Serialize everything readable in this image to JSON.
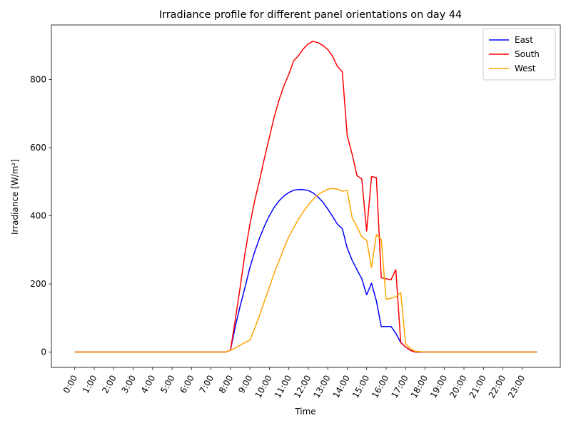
{
  "chart_data": {
    "type": "line",
    "title": "Irradiance profile for different panel orientations on day 44",
    "xlabel": "Time",
    "ylabel": "Irradiance [W/m²]",
    "x_ticks": [
      "0:00",
      "1:00",
      "2:00",
      "3:00",
      "4:00",
      "5:00",
      "6:00",
      "7:00",
      "8:00",
      "9:00",
      "10:00",
      "11:00",
      "12:00",
      "13:00",
      "14:00",
      "15:00",
      "16:00",
      "17:00",
      "18:00",
      "19:00",
      "20:00",
      "21:00",
      "22:00",
      "23:00"
    ],
    "y_ticks": [
      0,
      200,
      400,
      600,
      800
    ],
    "xlim": [
      -1.2,
      24.95
    ],
    "ylim": [
      -45,
      960
    ],
    "legend_position": "top-right",
    "grid": false,
    "series": [
      {
        "name": "East",
        "color": "#0000ff",
        "points": [
          [
            0,
            0
          ],
          [
            1,
            0
          ],
          [
            2,
            0
          ],
          [
            3,
            0
          ],
          [
            4,
            0
          ],
          [
            5,
            0
          ],
          [
            6,
            0
          ],
          [
            7,
            0
          ],
          [
            7.75,
            0
          ],
          [
            8.0,
            5
          ],
          [
            8.25,
            75
          ],
          [
            8.5,
            135
          ],
          [
            8.75,
            190
          ],
          [
            9.0,
            248
          ],
          [
            9.25,
            295
          ],
          [
            9.5,
            335
          ],
          [
            9.75,
            370
          ],
          [
            10.0,
            400
          ],
          [
            10.25,
            425
          ],
          [
            10.5,
            444
          ],
          [
            10.75,
            458
          ],
          [
            11.0,
            468
          ],
          [
            11.25,
            475
          ],
          [
            11.5,
            477
          ],
          [
            11.75,
            477
          ],
          [
            12.0,
            474
          ],
          [
            12.25,
            467
          ],
          [
            12.5,
            455
          ],
          [
            12.75,
            440
          ],
          [
            13.0,
            420
          ],
          [
            13.25,
            398
          ],
          [
            13.5,
            375
          ],
          [
            13.75,
            362
          ],
          [
            14.0,
            305
          ],
          [
            14.25,
            270
          ],
          [
            14.5,
            242
          ],
          [
            14.75,
            215
          ],
          [
            15.0,
            168
          ],
          [
            15.25,
            202
          ],
          [
            15.5,
            150
          ],
          [
            15.75,
            75
          ],
          [
            16.0,
            75
          ],
          [
            16.25,
            75
          ],
          [
            16.5,
            55
          ],
          [
            16.75,
            28
          ],
          [
            17.0,
            15
          ],
          [
            17.25,
            5
          ],
          [
            17.5,
            0
          ],
          [
            18,
            0
          ],
          [
            19,
            0
          ],
          [
            20,
            0
          ],
          [
            21,
            0
          ],
          [
            22,
            0
          ],
          [
            23,
            0
          ],
          [
            23.75,
            0
          ]
        ]
      },
      {
        "name": "South",
        "color": "#ff0000",
        "points": [
          [
            0,
            0
          ],
          [
            1,
            0
          ],
          [
            2,
            0
          ],
          [
            3,
            0
          ],
          [
            4,
            0
          ],
          [
            5,
            0
          ],
          [
            6,
            0
          ],
          [
            7,
            0
          ],
          [
            7.75,
            0
          ],
          [
            8.0,
            5
          ],
          [
            8.25,
            95
          ],
          [
            8.5,
            190
          ],
          [
            8.75,
            290
          ],
          [
            9.0,
            375
          ],
          [
            9.25,
            445
          ],
          [
            9.5,
            505
          ],
          [
            9.75,
            570
          ],
          [
            10.0,
            630
          ],
          [
            10.25,
            690
          ],
          [
            10.5,
            740
          ],
          [
            10.75,
            782
          ],
          [
            11.0,
            815
          ],
          [
            11.25,
            855
          ],
          [
            11.5,
            870
          ],
          [
            11.75,
            890
          ],
          [
            12.0,
            905
          ],
          [
            12.25,
            912
          ],
          [
            12.5,
            908
          ],
          [
            12.75,
            900
          ],
          [
            13.0,
            888
          ],
          [
            13.25,
            868
          ],
          [
            13.5,
            838
          ],
          [
            13.75,
            822
          ],
          [
            14.0,
            635
          ],
          [
            14.25,
            582
          ],
          [
            14.5,
            518
          ],
          [
            14.75,
            508
          ],
          [
            15.0,
            355
          ],
          [
            15.25,
            515
          ],
          [
            15.5,
            512
          ],
          [
            15.75,
            218
          ],
          [
            16.0,
            215
          ],
          [
            16.25,
            212
          ],
          [
            16.5,
            242
          ],
          [
            16.75,
            28
          ],
          [
            17.0,
            15
          ],
          [
            17.25,
            5
          ],
          [
            17.5,
            0
          ],
          [
            18,
            0
          ],
          [
            19,
            0
          ],
          [
            20,
            0
          ],
          [
            21,
            0
          ],
          [
            22,
            0
          ],
          [
            23,
            0
          ],
          [
            23.75,
            0
          ]
        ]
      },
      {
        "name": "West",
        "color": "#ffa500",
        "points": [
          [
            0,
            0
          ],
          [
            1,
            0
          ],
          [
            2,
            0
          ],
          [
            3,
            0
          ],
          [
            4,
            0
          ],
          [
            5,
            0
          ],
          [
            6,
            0
          ],
          [
            7,
            0
          ],
          [
            7.75,
            0
          ],
          [
            8.0,
            5
          ],
          [
            8.25,
            12
          ],
          [
            8.5,
            20
          ],
          [
            8.75,
            28
          ],
          [
            9.0,
            35
          ],
          [
            9.25,
            70
          ],
          [
            9.5,
            108
          ],
          [
            9.75,
            150
          ],
          [
            10.0,
            190
          ],
          [
            10.25,
            232
          ],
          [
            10.5,
            268
          ],
          [
            10.75,
            305
          ],
          [
            11.0,
            338
          ],
          [
            11.25,
            365
          ],
          [
            11.5,
            390
          ],
          [
            11.75,
            412
          ],
          [
            12.0,
            432
          ],
          [
            12.25,
            448
          ],
          [
            12.5,
            462
          ],
          [
            12.75,
            470
          ],
          [
            13.0,
            478
          ],
          [
            13.25,
            480
          ],
          [
            13.5,
            478
          ],
          [
            13.75,
            472
          ],
          [
            14.0,
            475
          ],
          [
            14.25,
            395
          ],
          [
            14.5,
            368
          ],
          [
            14.75,
            338
          ],
          [
            15.0,
            328
          ],
          [
            15.25,
            248
          ],
          [
            15.5,
            345
          ],
          [
            15.75,
            330
          ],
          [
            16.0,
            155
          ],
          [
            16.25,
            158
          ],
          [
            16.5,
            162
          ],
          [
            16.75,
            175
          ],
          [
            17.0,
            25
          ],
          [
            17.25,
            10
          ],
          [
            17.5,
            2
          ],
          [
            18,
            0
          ],
          [
            19,
            0
          ],
          [
            20,
            0
          ],
          [
            21,
            0
          ],
          [
            22,
            0
          ],
          [
            23,
            0
          ],
          [
            23.75,
            0
          ]
        ]
      }
    ]
  }
}
